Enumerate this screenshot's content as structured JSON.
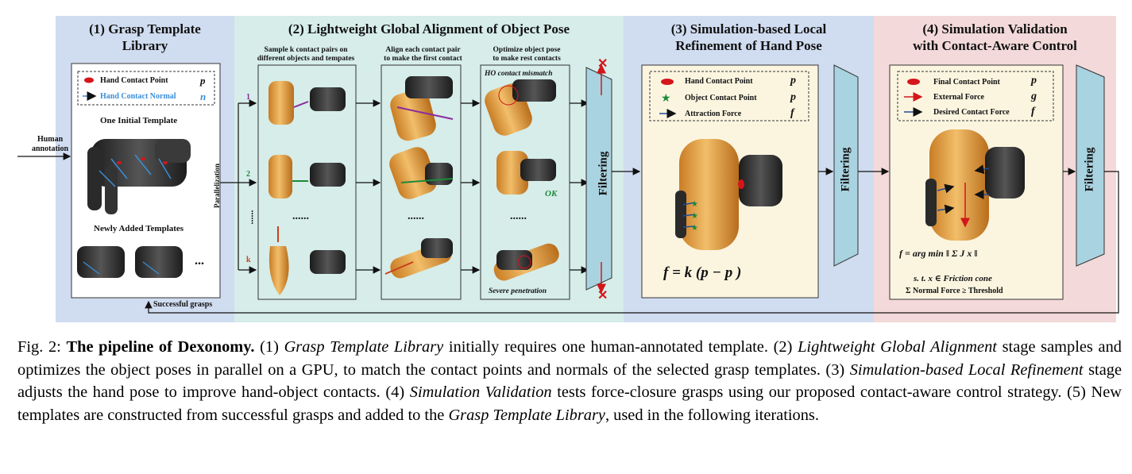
{
  "panels": {
    "p1": {
      "title_line1": "(1) Grasp Template",
      "title_line2": "Library"
    },
    "p2": {
      "title": "(2) Lightweight Global Alignment of Object Pose"
    },
    "p3": {
      "title_line1": "(3) Simulation-based Local",
      "title_line2": "Refinement of Hand Pose"
    },
    "p4": {
      "title_line1": "(4) Simulation Validation",
      "title_line2": "with Contact-Aware Control"
    }
  },
  "p1": {
    "legend": {
      "hand_contact_point": "Hand Contact Point",
      "hand_contact_normal": "Hand Contact Normal",
      "sym_point": "p",
      "sym_normal": "n"
    },
    "one_initial_template": "One Initial Template",
    "newly_added_templates": "Newly Added Templates",
    "ellipsis": "...",
    "human_annotation_line1": "Human",
    "human_annotation_line2": "annotation",
    "successful_grasps": "Successful grasps"
  },
  "p2": {
    "col1_line1": "Sample k contact pairs on",
    "col1_line2": "different objects and tempates",
    "col2_line1": "Align each contact pair",
    "col2_line2": "to make the first contact",
    "col3_line1": "Optimize object pose",
    "col3_line2": "to make rest contacts",
    "parallelization": "Parallelization",
    "dots": "......",
    "row_labels": [
      "1",
      "2",
      "k"
    ],
    "ho_mismatch": "HO contact mismatch",
    "ok": "OK",
    "severe_penetration": "Severe penetration",
    "filtering": "Filtering"
  },
  "p3": {
    "legend": {
      "hand_contact_point": "Hand Contact Point",
      "object_contact_point": "Object Contact Point",
      "attraction_force": "Attraction Force",
      "sym_hand": "p",
      "sym_obj": "p",
      "sym_force": "f"
    },
    "equation": "f = k (p − p )",
    "filtering": "Filtering"
  },
  "p4": {
    "legend": {
      "final_contact_point": "Final Contact Point",
      "external_force": "External Force",
      "desired_contact_force": "Desired Contact Force",
      "sym_point": "p",
      "sym_ext": "g",
      "sym_force": "f"
    },
    "eq_line1": "f = arg min  ‖ Σ J x ‖",
    "eq_line2": "s. t.   x ∈ Friction cone",
    "eq_line3": "Σ Normal Force ≥ Threshold",
    "filtering": "Filtering"
  },
  "caption": {
    "fig": "Fig. 2:",
    "title": "The pipeline of Dexonomy.",
    "s1a": "(1)",
    "s1i": "Grasp Template Library",
    "s1b": "initially requires one human-annotated template. (2)",
    "s2i": "Lightweight Global Alignment",
    "s2b": "stage samples and optimizes the object poses in parallel on a GPU, to match the contact points and normals of the selected grasp templates. (3)",
    "s3i": "Simulation-based Local Refinement",
    "s3b": "stage adjusts the hand pose to improve hand-object contacts. (4)",
    "s4i": "Simulation Validation",
    "s4b": "tests force-closure grasps using our proposed contact-aware control strategy. (5) New templates are constructed from successful grasps and added to the",
    "s5i": "Grasp Template Library",
    "s5b": ", used in the following iterations."
  },
  "colors": {
    "hand_point": "#d4161b",
    "normal": "#3b8fd6",
    "object_point": "#1b8a3a",
    "force": "#1f4c9e",
    "object": "#e9a94a",
    "filter": "#a9d3e0"
  }
}
